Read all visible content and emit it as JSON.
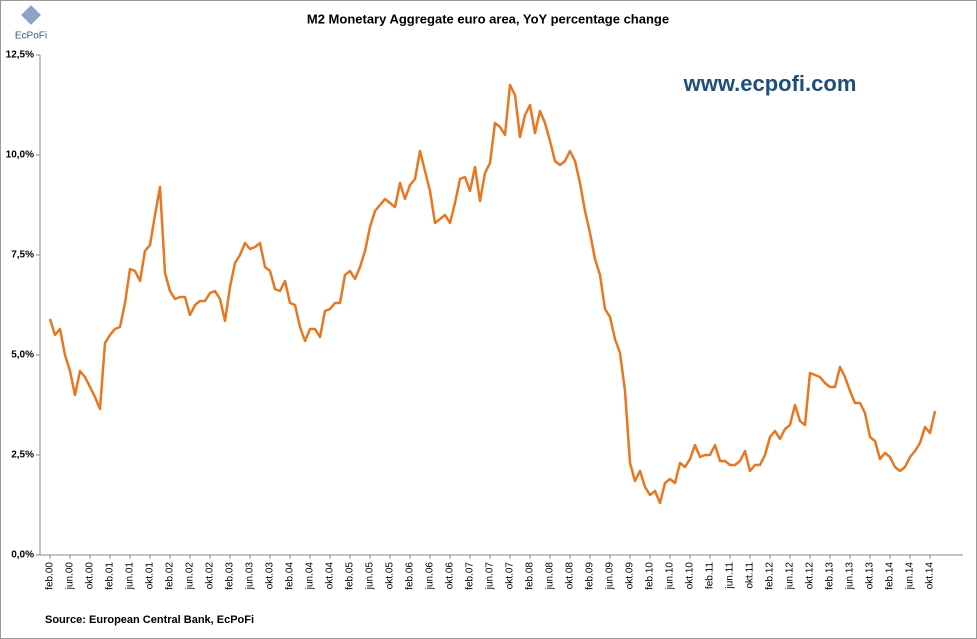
{
  "chart_data": {
    "type": "line",
    "title": "M2 Monetary Aggregate euro area, YoY percentage change",
    "annotation": "www.ecpofi.com",
    "source": "Source: European  Central Bank,  EcPoFi",
    "logo_text": "EcPoFi",
    "categories": [
      "feb.00",
      null,
      null,
      null,
      "jun.00",
      null,
      null,
      null,
      "okt.00",
      null,
      null,
      null,
      "feb.01",
      null,
      null,
      null,
      "jun.01",
      null,
      null,
      null,
      "okt.01",
      null,
      null,
      null,
      "feb.02",
      null,
      null,
      null,
      "jun.02",
      null,
      null,
      null,
      "okt.02",
      null,
      null,
      null,
      "feb.03",
      null,
      null,
      null,
      "jun.03",
      null,
      null,
      null,
      "okt.03",
      null,
      null,
      null,
      "feb.04",
      null,
      null,
      null,
      "jun.04",
      null,
      null,
      null,
      "okt.04",
      null,
      null,
      null,
      "feb.05",
      null,
      null,
      null,
      "jun.05",
      null,
      null,
      null,
      "okt.05",
      null,
      null,
      null,
      "feb.06",
      null,
      null,
      null,
      "jun.06",
      null,
      null,
      null,
      "okt.06",
      null,
      null,
      null,
      "feb.07",
      null,
      null,
      null,
      "jun.07",
      null,
      null,
      null,
      "okt.07",
      null,
      null,
      null,
      "feb.08",
      null,
      null,
      null,
      "jun.08",
      null,
      null,
      null,
      "okt.08",
      null,
      null,
      null,
      "feb.09",
      null,
      null,
      null,
      "jun.09",
      null,
      null,
      null,
      "okt.09",
      null,
      null,
      null,
      "feb.10",
      null,
      null,
      null,
      "jun.10",
      null,
      null,
      null,
      "okt.10",
      null,
      null,
      null,
      "feb.11",
      null,
      null,
      null,
      "jun.11",
      null,
      null,
      null,
      "okt.11",
      null,
      null,
      null,
      "feb.12",
      null,
      null,
      null,
      "jun.12",
      null,
      null,
      null,
      "okt.12",
      null,
      null,
      null,
      "feb.13",
      null,
      null,
      null,
      "jun.13",
      null,
      null,
      null,
      "okt.13",
      null,
      null,
      null,
      "feb.14",
      null,
      null,
      null,
      "jun.14",
      null,
      null,
      null,
      "okt.14",
      null
    ],
    "series": [
      {
        "color": "#e87722",
        "values": [
          5.9,
          5.5,
          5.65,
          5.0,
          4.6,
          4.0,
          4.6,
          4.45,
          4.2,
          3.95,
          3.65,
          5.3,
          5.5,
          5.65,
          5.7,
          6.3,
          7.15,
          7.1,
          6.85,
          7.6,
          7.75,
          8.5,
          9.2,
          7.05,
          6.6,
          6.4,
          6.45,
          6.45,
          6.0,
          6.25,
          6.35,
          6.35,
          6.55,
          6.6,
          6.4,
          5.85,
          6.7,
          7.3,
          7.5,
          7.8,
          7.65,
          7.7,
          7.8,
          7.2,
          7.1,
          6.65,
          6.6,
          6.85,
          6.3,
          6.25,
          5.7,
          5.35,
          5.65,
          5.65,
          5.45,
          6.1,
          6.15,
          6.3,
          6.3,
          7.0,
          7.1,
          6.9,
          7.2,
          7.6,
          8.2,
          8.6,
          8.75,
          8.9,
          8.8,
          8.7,
          9.3,
          8.9,
          9.25,
          9.4,
          10.1,
          9.6,
          9.1,
          8.3,
          8.4,
          8.5,
          8.3,
          8.8,
          9.4,
          9.45,
          9.1,
          9.7,
          8.85,
          9.55,
          9.8,
          10.8,
          10.7,
          10.5,
          11.75,
          11.5,
          10.45,
          11.0,
          11.25,
          10.55,
          11.1,
          10.8,
          10.35,
          9.85,
          9.75,
          9.85,
          10.1,
          9.85,
          9.3,
          8.6,
          8.05,
          7.4,
          7.0,
          6.15,
          5.95,
          5.4,
          5.05,
          4.1,
          2.3,
          1.85,
          2.1,
          1.7,
          1.5,
          1.6,
          1.3,
          1.8,
          1.9,
          1.8,
          2.3,
          2.2,
          2.4,
          2.75,
          2.45,
          2.5,
          2.5,
          2.75,
          2.35,
          2.35,
          2.25,
          2.25,
          2.35,
          2.6,
          2.1,
          2.25,
          2.25,
          2.5,
          2.95,
          3.1,
          2.9,
          3.15,
          3.25,
          3.75,
          3.35,
          3.25,
          4.55,
          4.5,
          4.45,
          4.3,
          4.2,
          4.2,
          4.7,
          4.45,
          4.1,
          3.8,
          3.8,
          3.55,
          2.95,
          2.85,
          2.4,
          2.55,
          2.45,
          2.2,
          2.1,
          2.2,
          2.45,
          2.6,
          2.8,
          3.2,
          3.05,
          3.6
        ]
      }
    ],
    "ylim": [
      0,
      12.5
    ],
    "yticks": [
      {
        "value": 0,
        "label": "0,0%"
      },
      {
        "value": 2.5,
        "label": "2,5%"
      },
      {
        "value": 5,
        "label": "5,0%"
      },
      {
        "value": 7.5,
        "label": "7,5%"
      },
      {
        "value": 10,
        "label": "10,0%"
      },
      {
        "value": 12.5,
        "label": "12,5%"
      }
    ],
    "grid": false
  }
}
